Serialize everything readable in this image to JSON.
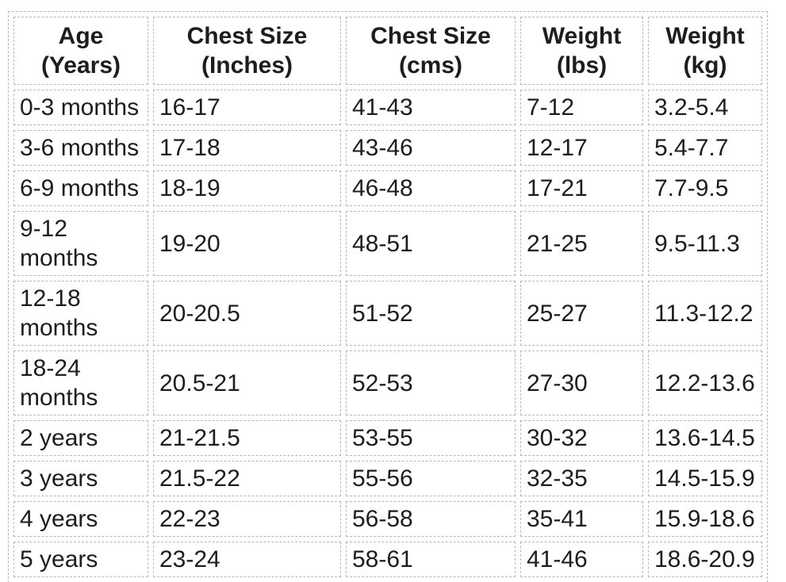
{
  "chart_data": {
    "type": "table",
    "columns": [
      "Age (Years)",
      "Chest Size (Inches)",
      "Chest Size (cms)",
      "Weight (lbs)",
      "Weight (kg)"
    ],
    "rows": [
      [
        "0-3 months",
        "16-17",
        "41-43",
        "7-12",
        "3.2-5.4"
      ],
      [
        "3-6 months",
        "17-18",
        "43-46",
        "12-17",
        "5.4-7.7"
      ],
      [
        "6-9 months",
        "18-19",
        "46-48",
        "17-21",
        "7.7-9.5"
      ],
      [
        "9-12 months",
        "19-20",
        "48-51",
        "21-25",
        "9.5-11.3"
      ],
      [
        "12-18 months",
        "20-20.5",
        "51-52",
        "25-27",
        "11.3-12.2"
      ],
      [
        "18-24 months",
        "20.5-21",
        "52-53",
        "27-30",
        "12.2-13.6"
      ],
      [
        "2 years",
        "21-21.5",
        "53-55",
        "30-32",
        "13.6-14.5"
      ],
      [
        "3 years",
        "21.5-22",
        "55-56",
        "32-35",
        "14.5-15.9"
      ],
      [
        "4 years",
        "22-23",
        "56-58",
        "35-41",
        "15.9-18.6"
      ],
      [
        "5 years",
        "23-24",
        "58-61",
        "41-46",
        "18.6-20.9"
      ]
    ],
    "layout": {
      "header_rows": 1,
      "grid": "dashed",
      "header_align": "center",
      "body_align": "left"
    }
  },
  "table": {
    "headers": [
      {
        "line1": "Age",
        "line2": "(Years)"
      },
      {
        "line1": "Chest Size",
        "line2": "(Inches)"
      },
      {
        "line1": "Chest Size",
        "line2": "(cms)"
      },
      {
        "line1": "Weight",
        "line2": "(lbs)"
      },
      {
        "line1": "Weight",
        "line2": "(kg)"
      }
    ]
  },
  "colors": {
    "text": "#1d1d1f",
    "border": "#b7b7b9",
    "background": "#ffffff"
  }
}
